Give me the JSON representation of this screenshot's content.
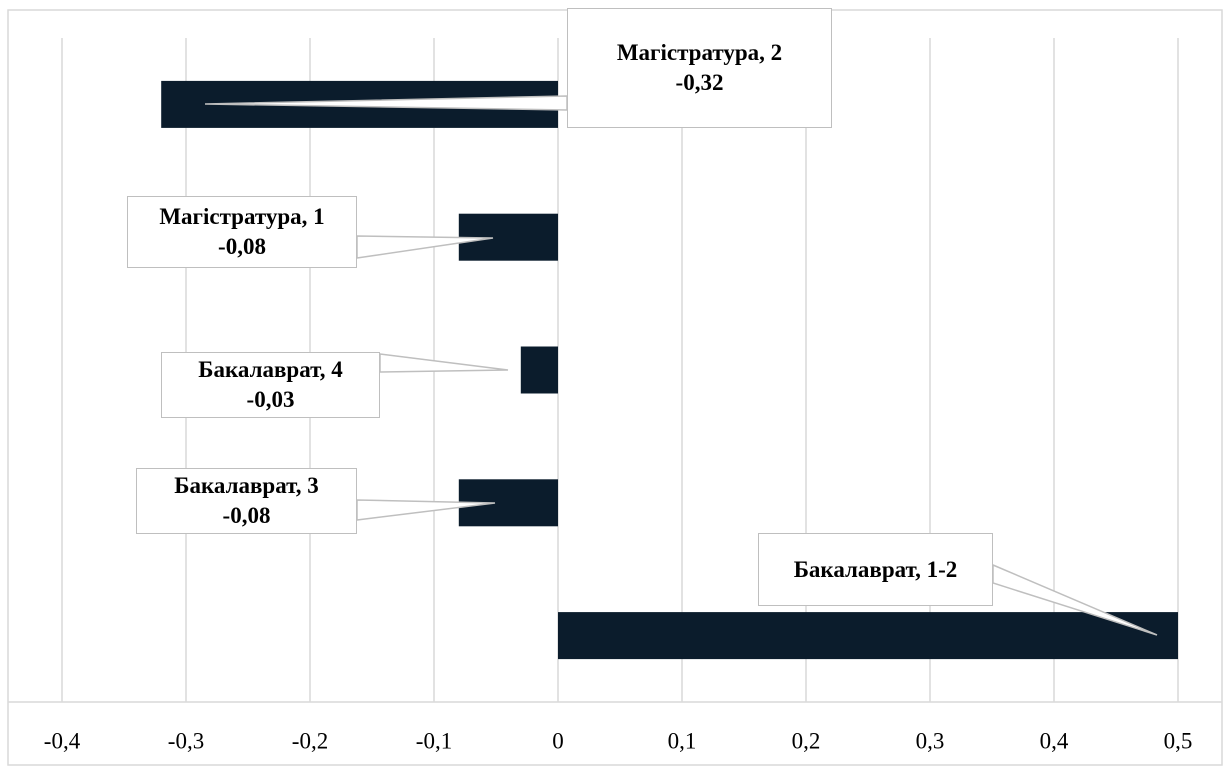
{
  "chart_data": {
    "type": "barh",
    "categories": [
      "Магістратура, 2",
      "Магістратура, 1",
      "Бакалаврат, 4",
      "Бакалаврат, 3",
      "Бакалаврат, 1-2"
    ],
    "values": [
      -0.32,
      -0.08,
      -0.03,
      -0.08,
      0.5
    ],
    "value_labels": [
      "-0,32",
      "-0,08",
      "-0,03",
      "-0,08",
      null
    ],
    "color": "#0b1c2c",
    "xlim": [
      -0.4,
      0.5
    ],
    "xticks": [
      {
        "value": -0.4,
        "label": "-0,4"
      },
      {
        "value": -0.3,
        "label": "-0,3"
      },
      {
        "value": -0.2,
        "label": "-0,2"
      },
      {
        "value": -0.1,
        "label": "-0,1"
      },
      0,
      {
        "value": 0.1,
        "label": "0,1"
      },
      {
        "value": 0.2,
        "label": "0,2"
      },
      {
        "value": 0.3,
        "label": "0,3"
      },
      {
        "value": 0.4,
        "label": "0,4"
      },
      {
        "value": 0.5,
        "label": "0,5"
      }
    ],
    "grid": true
  }
}
